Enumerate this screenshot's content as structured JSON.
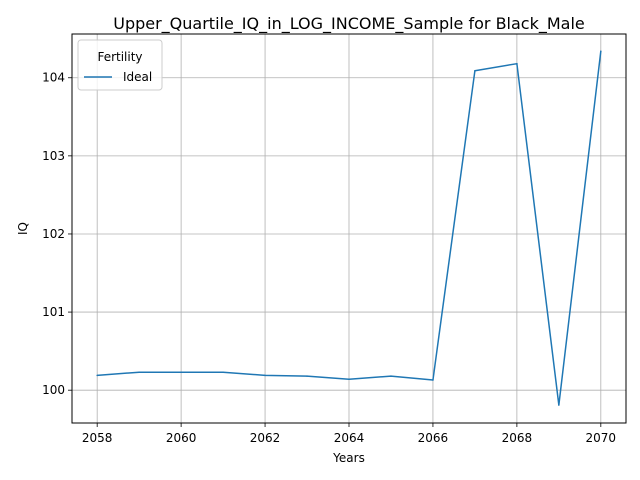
{
  "chart_data": {
    "type": "line",
    "title": "Upper_Quartile_IQ_in_LOG_INCOME_Sample for Black_Male",
    "xlabel": "Years",
    "ylabel": "IQ",
    "x": [
      2058,
      2059,
      2060,
      2061,
      2062,
      2063,
      2064,
      2065,
      2066,
      2067,
      2068,
      2069,
      2070
    ],
    "xticks": [
      2058,
      2060,
      2062,
      2064,
      2066,
      2068,
      2070
    ],
    "yticks": [
      100,
      101,
      102,
      103,
      104
    ],
    "xlim": [
      2057.4,
      2070.6
    ],
    "ylim": [
      99.58,
      104.56
    ],
    "grid": true,
    "legend": {
      "title": "Fertility",
      "position": "top-left"
    },
    "series": [
      {
        "name": "Ideal",
        "color": "#1f77b4",
        "values": [
          100.19,
          100.23,
          100.23,
          100.23,
          100.19,
          100.18,
          100.14,
          100.18,
          100.13,
          104.09,
          104.18,
          99.81,
          104.34
        ]
      }
    ]
  }
}
